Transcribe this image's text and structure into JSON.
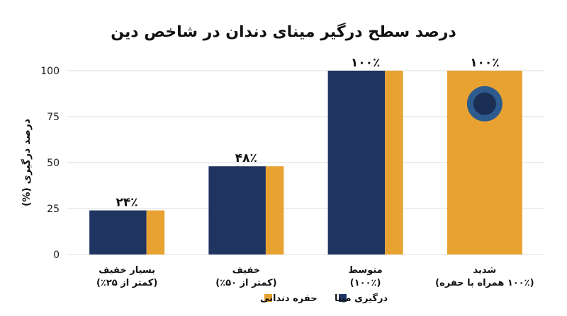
{
  "chart_data": {
    "type": "bar",
    "title": "درصد سطح درگیر مینای دندان در شاخص دین",
    "ylabel": "درصد درگیری (%)",
    "ylim": [
      0,
      100
    ],
    "yticks": [
      "0",
      "25",
      "50",
      "75",
      "100"
    ],
    "categories": [
      {
        "line1": "بسیار خفیف",
        "line2": "(کمتر از ۲۵٪)"
      },
      {
        "line1": "خفیف",
        "line2": "(کمتر از ۵۰٪)"
      },
      {
        "line1": "متوسط",
        "line2": "(۱۰۰٪)"
      },
      {
        "line1": "شدید",
        "line2": "(۱۰۰٪ همراه با حفره)"
      }
    ],
    "series": [
      {
        "name": "درگیری مینا",
        "color": "#1f3461",
        "values": [
          24,
          48,
          100,
          0
        ]
      },
      {
        "name": "حفره دندانی",
        "color": "#e8a232",
        "values": [
          24,
          48,
          100,
          100
        ]
      }
    ],
    "data_labels": [
      "۲۴٪",
      "۴۸٪",
      "۱۰۰٪",
      "۱۰۰٪"
    ],
    "grid": true,
    "legend_position": "bottom",
    "pit_icon": {
      "category_index": 3,
      "value": 82
    }
  }
}
